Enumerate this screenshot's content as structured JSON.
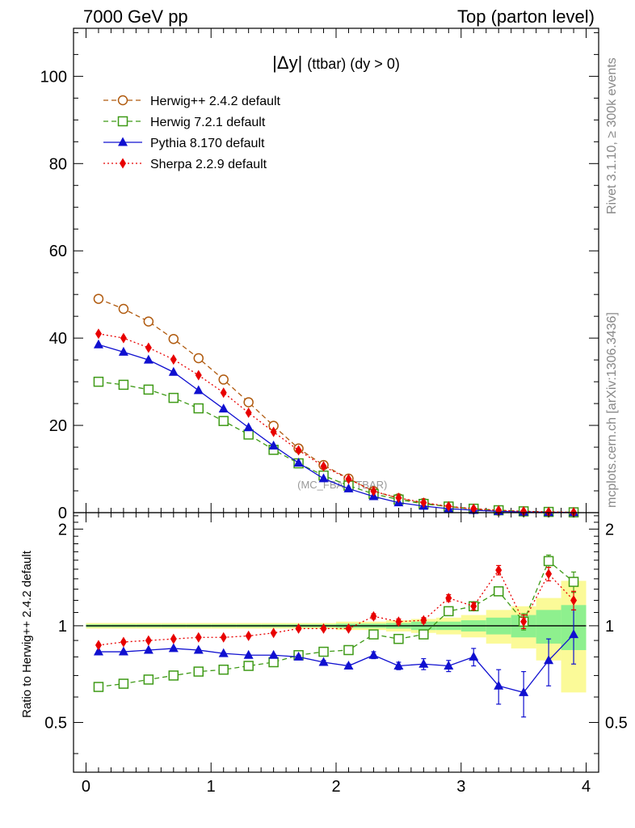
{
  "header": {
    "left": "7000 GeV pp",
    "right": "Top (parton level)"
  },
  "side_labels": {
    "rivet": "Rivet 3.1.10, ≥ 300k events",
    "mcplots": "mcplots.cern.ch [arXiv:1306.3436]"
  },
  "colors": {
    "herwigpp": "#b05a0e",
    "herwig7": "#3e9a16",
    "pythia": "#1010d0",
    "sherpa": "#e80000",
    "band_yellow": "#fbfa98",
    "band_green": "#8ef08e"
  },
  "chart_data": [
    {
      "type": "line",
      "panel": "main",
      "title_main": "|Δy|",
      "title_rest": "(ttbar) (dy > 0)",
      "watermark": "(MC_FBA_TTBAR)",
      "xlim": [
        -0.1,
        4.1
      ],
      "ylim": [
        0,
        111
      ],
      "yticks": [
        0,
        20,
        40,
        60,
        80,
        100
      ],
      "ytick_labels": [
        "0",
        "20",
        "40",
        "60",
        "80",
        "100"
      ],
      "x": [
        0.1,
        0.3,
        0.5,
        0.7,
        0.9,
        1.1,
        1.3,
        1.5,
        1.7,
        1.9,
        2.1,
        2.3,
        2.5,
        2.7,
        2.9,
        3.1,
        3.3,
        3.5,
        3.7,
        3.9
      ],
      "series": [
        {
          "key": "herwigpp",
          "name": "Herwig++ 2.4.2 default",
          "marker": "circle-open",
          "dash": "6,4",
          "values": [
            49,
            46.7,
            43.8,
            39.8,
            35.4,
            30.5,
            25.3,
            19.9,
            14.7,
            10.9,
            7.8,
            4.9,
            3.3,
            2.2,
            1.35,
            0.8,
            0.45,
            0.25,
            0.13,
            0.06
          ]
        },
        {
          "key": "herwig7",
          "name": "Herwig 7.2.1 default",
          "marker": "square-open",
          "dash": "6,4",
          "values": [
            30,
            29.3,
            28.2,
            26.3,
            23.9,
            21,
            17.9,
            14.4,
            11.3,
            8.5,
            6.2,
            4.3,
            3,
            2,
            1.4,
            0.9,
            0.55,
            0.3,
            0.17,
            0.08
          ]
        },
        {
          "key": "pythia",
          "name": "Pythia 8.170 default",
          "marker": "triangle",
          "dash": "",
          "values": [
            38.5,
            36.8,
            35,
            32.2,
            28,
            23.8,
            19.5,
            15.3,
            11.4,
            7.8,
            5.5,
            3.7,
            2.3,
            1.5,
            0.9,
            0.55,
            0.3,
            0.15,
            0.08,
            0.04
          ]
        },
        {
          "key": "sherpa",
          "name": "Sherpa 2.2.9 default",
          "marker": "diamond",
          "dash": "2,3",
          "values": [
            41,
            40,
            37.8,
            35.1,
            31.5,
            27.5,
            22.9,
            18.5,
            14.3,
            10.6,
            7.7,
            4.9,
            3.4,
            2.3,
            1.45,
            0.9,
            0.55,
            0.3,
            0.17,
            0.08
          ]
        }
      ]
    },
    {
      "type": "line",
      "panel": "ratio",
      "ylabel": "Ratio to Herwig++ 2.4.2 default",
      "xlim": [
        -0.1,
        4.1
      ],
      "ylim": [
        0.35,
        2.25
      ],
      "yticks": [
        0.5,
        1,
        2
      ],
      "ytick_labels": [
        "0.5",
        "1",
        "2"
      ],
      "xticks": [
        0,
        1,
        2,
        3,
        4
      ],
      "xtick_labels": [
        "0",
        "1",
        "2",
        "3",
        "4"
      ],
      "x": [
        0.1,
        0.3,
        0.5,
        0.7,
        0.9,
        1.1,
        1.3,
        1.5,
        1.7,
        1.9,
        2.1,
        2.3,
        2.5,
        2.7,
        2.9,
        3.1,
        3.3,
        3.5,
        3.7,
        3.9
      ],
      "band_yellow_half": [
        0.02,
        0.02,
        0.02,
        0.02,
        0.02,
        0.02,
        0.02,
        0.02,
        0.02,
        0.02,
        0.03,
        0.03,
        0.04,
        0.05,
        0.06,
        0.08,
        0.12,
        0.15,
        0.22,
        0.38
      ],
      "band_green_half": [
        0.01,
        0.01,
        0.01,
        0.01,
        0.01,
        0.01,
        0.01,
        0.01,
        0.01,
        0.01,
        0.015,
        0.015,
        0.02,
        0.03,
        0.03,
        0.04,
        0.06,
        0.08,
        0.12,
        0.16
      ],
      "series": [
        {
          "key": "herwig7",
          "marker": "square-open",
          "dash": "6,4",
          "values": [
            0.645,
            0.66,
            0.68,
            0.7,
            0.72,
            0.73,
            0.75,
            0.77,
            0.81,
            0.83,
            0.84,
            0.94,
            0.91,
            0.94,
            1.11,
            1.15,
            1.28,
            1.03,
            1.59,
            1.37
          ],
          "errors": [
            0,
            0,
            0,
            0,
            0,
            0,
            0,
            0,
            0,
            0,
            0.01,
            0.015,
            0.015,
            0.02,
            0.02,
            0.03,
            0.04,
            0.06,
            0.07,
            0.1
          ]
        },
        {
          "key": "pythia",
          "marker": "triangle",
          "dash": "",
          "values": [
            0.83,
            0.83,
            0.84,
            0.85,
            0.84,
            0.82,
            0.81,
            0.81,
            0.8,
            0.77,
            0.75,
            0.81,
            0.75,
            0.76,
            0.75,
            0.8,
            0.65,
            0.62,
            0.78,
            0.94
          ],
          "errors": [
            0.005,
            0.005,
            0.005,
            0.005,
            0.005,
            0.005,
            0.005,
            0.005,
            0.01,
            0.01,
            0.01,
            0.02,
            0.02,
            0.03,
            0.03,
            0.05,
            0.08,
            0.1,
            0.13,
            0.18
          ]
        },
        {
          "key": "sherpa",
          "marker": "diamond",
          "dash": "2,3",
          "values": [
            0.87,
            0.89,
            0.9,
            0.91,
            0.92,
            0.92,
            0.93,
            0.95,
            0.98,
            0.98,
            0.98,
            1.07,
            1.03,
            1.04,
            1.22,
            1.15,
            1.49,
            1.03,
            1.45,
            1.2
          ],
          "errors": [
            0,
            0,
            0,
            0,
            0,
            0,
            0,
            0,
            0.01,
            0.01,
            0.01,
            0.02,
            0.02,
            0.02,
            0.03,
            0.03,
            0.05,
            0.05,
            0.07,
            0.08
          ]
        }
      ]
    }
  ]
}
